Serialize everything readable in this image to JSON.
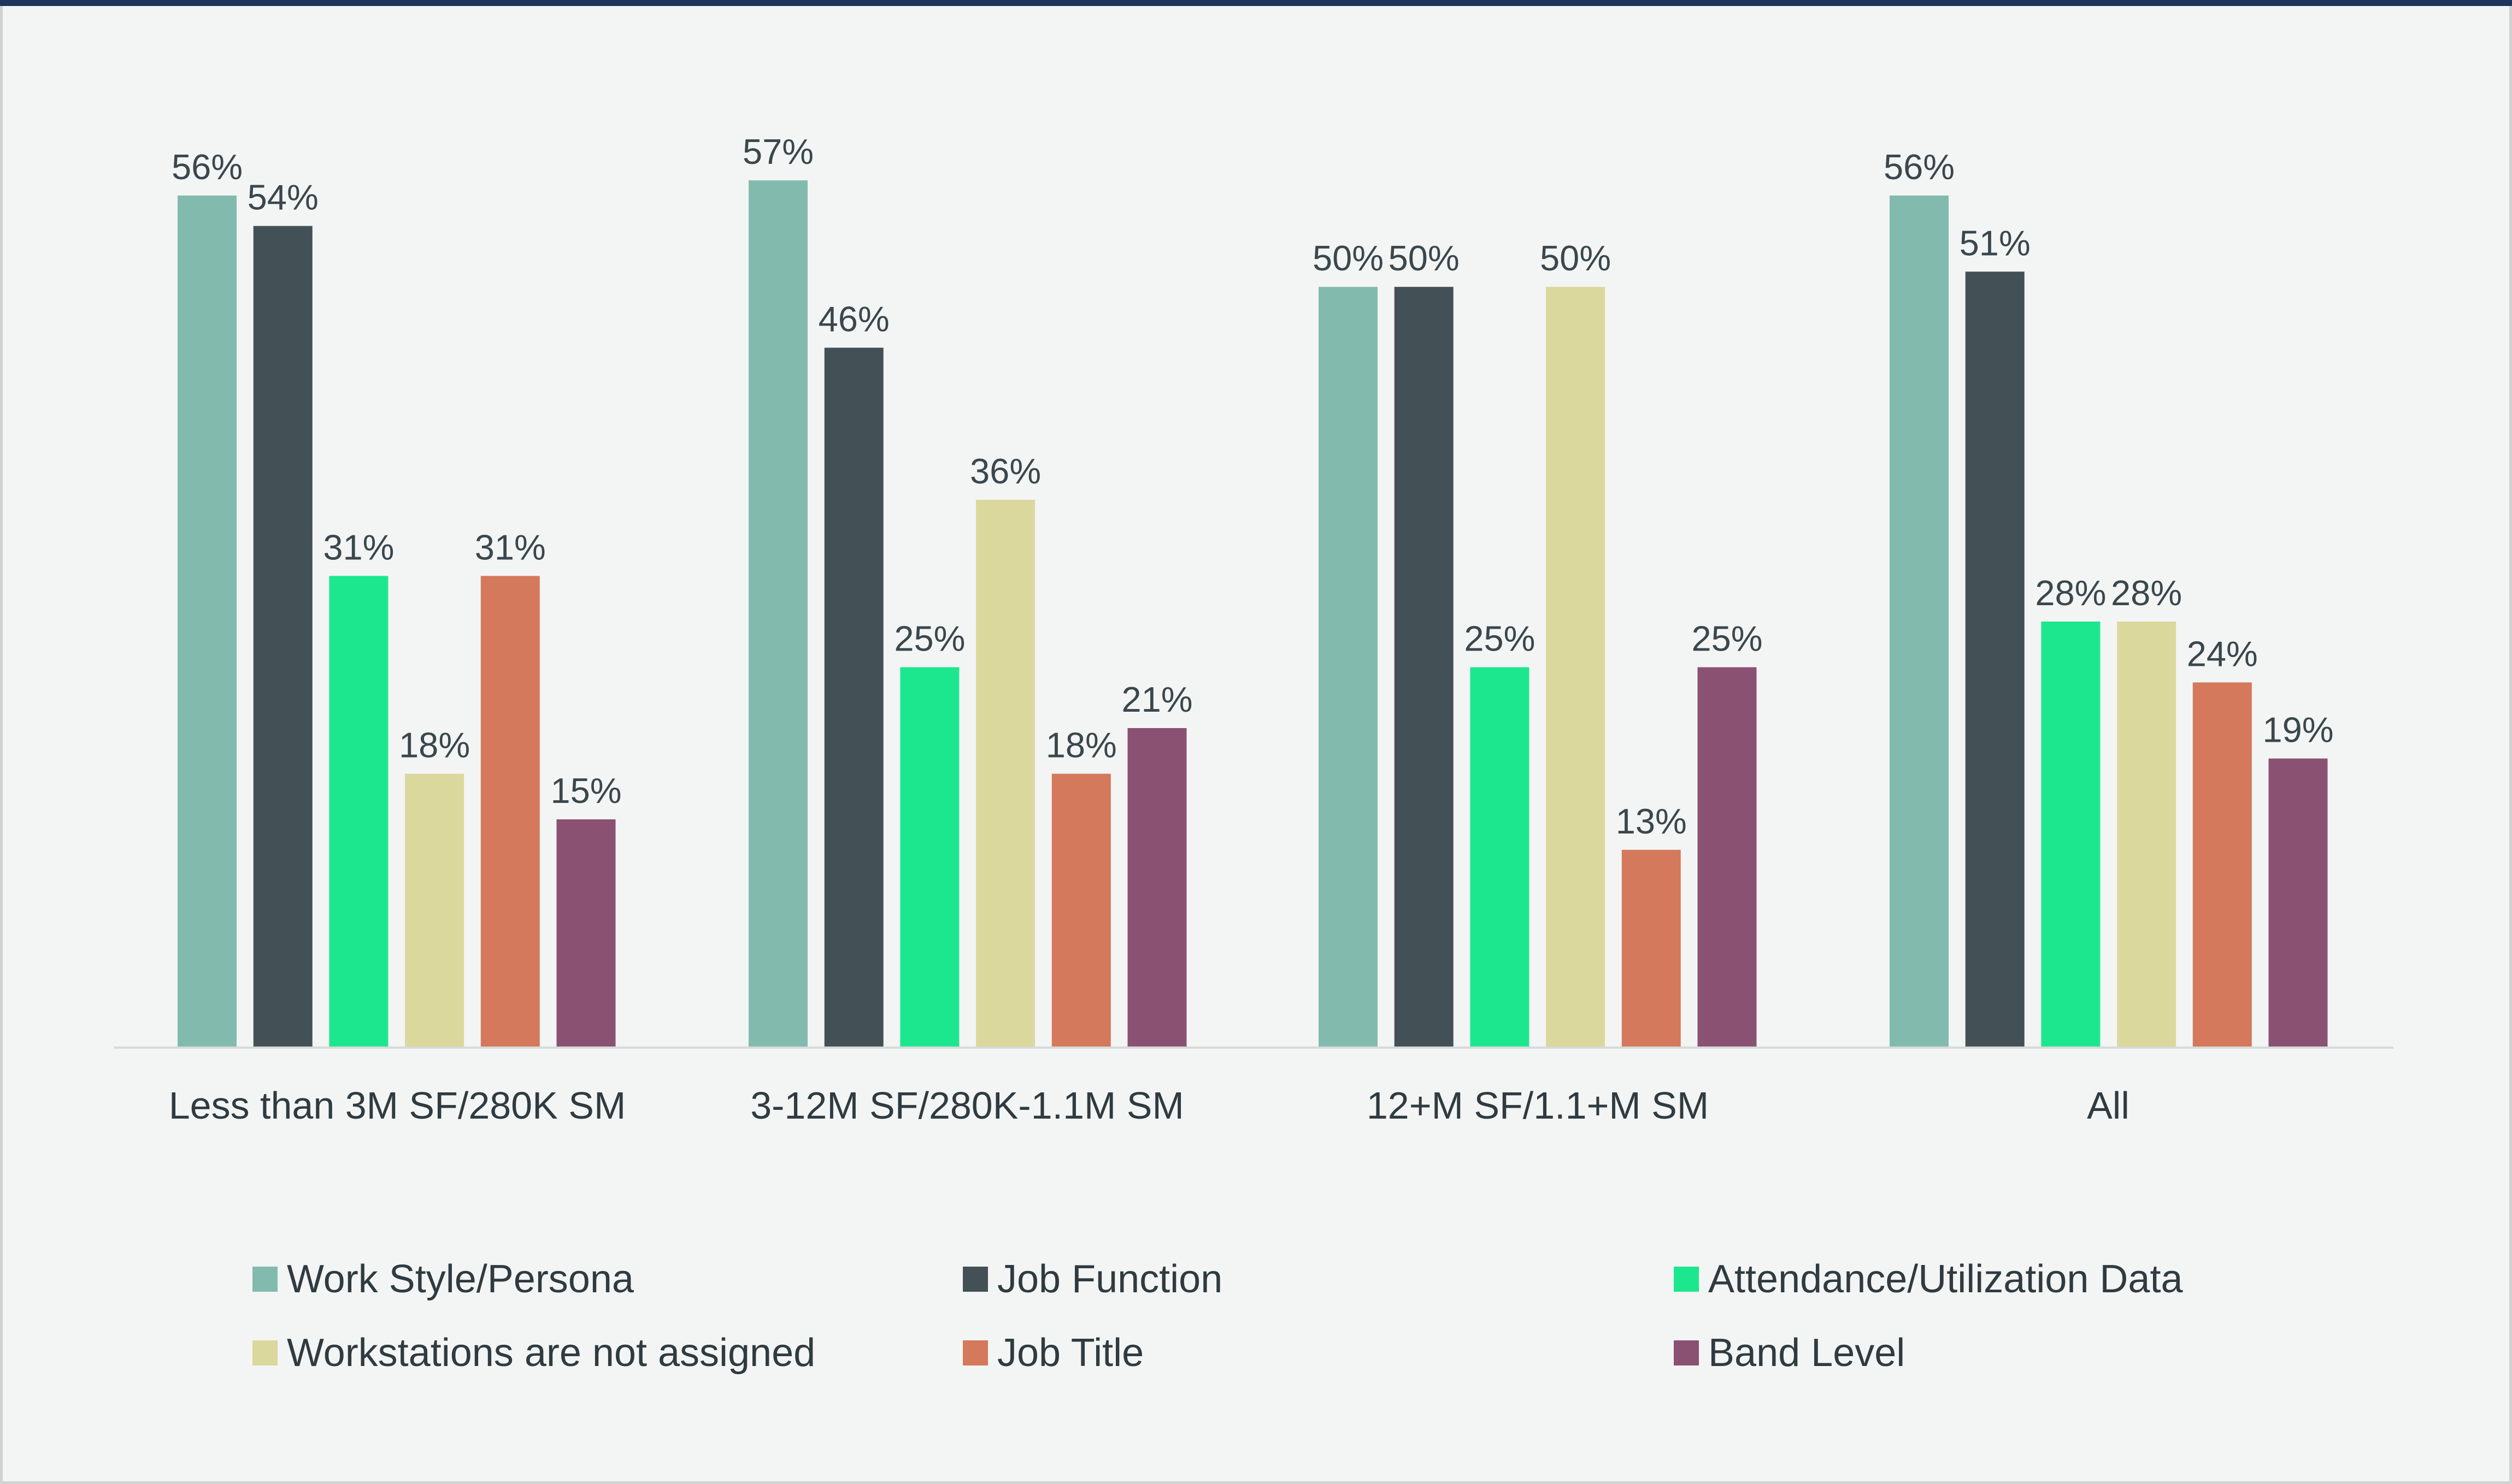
{
  "chart_data": {
    "type": "bar",
    "categories": [
      "Less than 3M SF/280K SM",
      "3-12M SF/280K-1.1M SM",
      "12+M SF/1.1+M SM",
      "All"
    ],
    "series": [
      {
        "name": "Work Style/Persona",
        "color": "#82bbae",
        "values": [
          56,
          57,
          50,
          56
        ],
        "labels": [
          "56%",
          "57%",
          "50%",
          "56%"
        ]
      },
      {
        "name": "Job Function",
        "color": "#435156",
        "values": [
          54,
          46,
          50,
          51
        ],
        "labels": [
          "54%",
          "46%",
          "50%",
          "51%"
        ]
      },
      {
        "name": "Attendance/Utilization Data",
        "color": "#1de78e",
        "values": [
          31,
          25,
          25,
          28
        ],
        "labels": [
          "31%",
          "25%",
          "25%",
          "28%"
        ]
      },
      {
        "name": "Workstations are not assigned",
        "color": "#dad89c",
        "values": [
          18,
          36,
          50,
          28
        ],
        "labels": [
          "18%",
          "36%",
          "50%",
          "28%"
        ]
      },
      {
        "name": "Job Title",
        "color": "#d4795b",
        "values": [
          31,
          18,
          13,
          24
        ],
        "labels": [
          "31%",
          "18%",
          "13%",
          "24%"
        ]
      },
      {
        "name": "Band Level",
        "color": "#8a5172",
        "values": [
          15,
          21,
          25,
          19
        ],
        "labels": [
          "15%",
          "21%",
          "25%",
          "19%"
        ]
      }
    ],
    "ylim": [
      0,
      60
    ],
    "grid": false,
    "legend": "bottom",
    "title": "",
    "xlabel": "",
    "ylabel": ""
  }
}
